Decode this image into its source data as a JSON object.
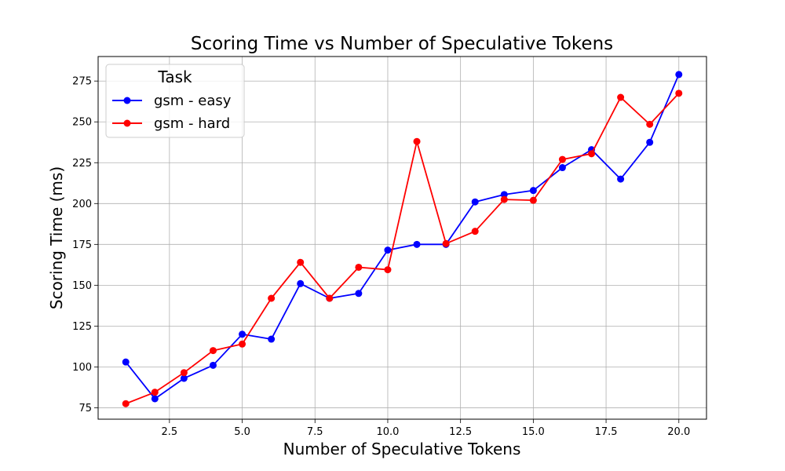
{
  "chart_data": {
    "type": "line",
    "title": "Scoring Time vs Number of Speculative Tokens",
    "xlabel": "Number of Speculative Tokens",
    "ylabel": "Scoring Time (ms)",
    "xlim": [
      0.05,
      20.95
    ],
    "ylim": [
      68,
      290
    ],
    "x_ticks": [
      2.5,
      5.0,
      7.5,
      10.0,
      12.5,
      15.0,
      17.5,
      20.0
    ],
    "x_tick_labels": [
      "2.5",
      "5.0",
      "7.5",
      "10.0",
      "12.5",
      "15.0",
      "17.5",
      "20.0"
    ],
    "y_ticks": [
      75,
      100,
      125,
      150,
      175,
      200,
      225,
      250,
      275
    ],
    "y_tick_labels": [
      "75",
      "100",
      "125",
      "150",
      "175",
      "200",
      "225",
      "250",
      "275"
    ],
    "grid": true,
    "legend": {
      "title": "Task",
      "position": "top-left"
    },
    "x": [
      1,
      2,
      3,
      4,
      5,
      6,
      7,
      8,
      9,
      10,
      11,
      12,
      13,
      14,
      15,
      16,
      17,
      18,
      19,
      20
    ],
    "series": [
      {
        "name": "gsm - easy",
        "color": "#0000ff",
        "marker": "circle",
        "values": [
          103,
          80.5,
          93,
          101,
          120,
          117,
          151,
          142,
          145,
          171.5,
          175,
          175,
          201,
          205.5,
          208,
          222,
          233,
          215,
          237.5,
          279
        ]
      },
      {
        "name": "gsm - hard",
        "color": "#ff0000",
        "marker": "circle",
        "values": [
          77.5,
          84.5,
          96.5,
          110,
          114,
          142,
          164,
          142,
          161,
          159.5,
          238,
          175.5,
          183,
          202.5,
          202,
          227,
          230.5,
          265,
          248.5,
          267.5
        ]
      }
    ]
  }
}
